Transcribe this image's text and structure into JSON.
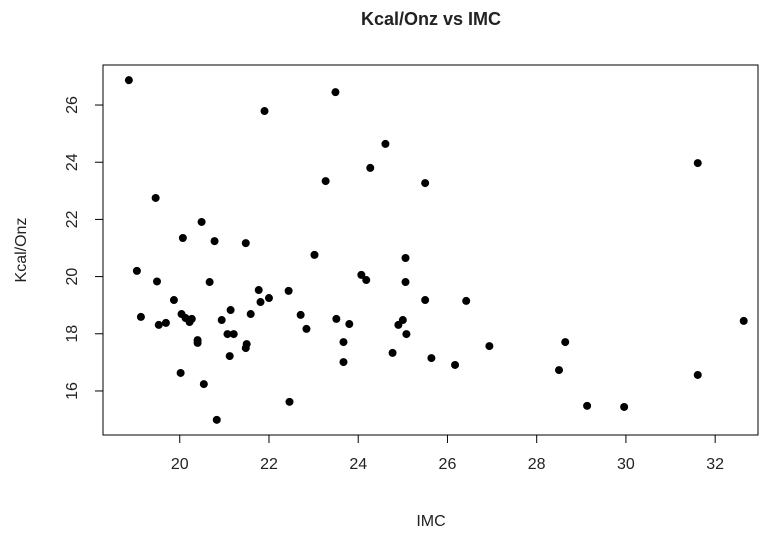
{
  "chart_data": {
    "type": "scatter",
    "title": "Kcal/Onz vs IMC",
    "x_label": "IMC",
    "y_label": "Kcal/Onz",
    "color": "#000000",
    "x": [
      18.86,
      19.04,
      19.13,
      19.46,
      19.49,
      19.53,
      19.69,
      19.87,
      20.07,
      20.04,
      20.13,
      20.22,
      20.27,
      20.02,
      20.4,
      20.4,
      20.49,
      20.54,
      20.67,
      20.78,
      20.83,
      20.94,
      21.07,
      21.14,
      21.21,
      21.12,
      21.48,
      21.48,
      21.5,
      21.59,
      21.77,
      21.81,
      21.9,
      22.0,
      22.44,
      22.46,
      22.71,
      22.84,
      23.02,
      23.27,
      23.49,
      23.51,
      23.67,
      23.67,
      23.8,
      24.07,
      24.18,
      24.27,
      24.61,
      24.77,
      24.9,
      25.0,
      25.06,
      25.06,
      25.08,
      25.5,
      25.5,
      25.64,
      26.17,
      26.42,
      26.94,
      28.5,
      28.64,
      29.13,
      29.96,
      31.61,
      31.61,
      32.64
    ],
    "values": [
      26.87,
      20.2,
      18.59,
      22.75,
      19.83,
      18.31,
      18.38,
      19.18,
      21.35,
      18.69,
      18.55,
      18.41,
      18.52,
      16.63,
      17.78,
      17.68,
      21.91,
      16.24,
      19.81,
      21.24,
      14.99,
      18.48,
      17.99,
      18.83,
      17.99,
      17.22,
      21.17,
      17.5,
      17.64,
      18.69,
      19.53,
      19.11,
      25.79,
      19.25,
      19.5,
      15.62,
      18.66,
      18.17,
      20.76,
      23.34,
      26.45,
      18.52,
      17.71,
      17.01,
      18.34,
      20.06,
      19.88,
      23.8,
      24.64,
      17.33,
      18.31,
      18.48,
      20.65,
      19.81,
      17.99,
      23.27,
      19.18,
      17.15,
      16.91,
      19.15,
      17.57,
      16.73,
      17.71,
      15.48,
      15.44,
      23.97,
      16.56,
      18.45
    ],
    "xlim": [
      18.28,
      32.96
    ],
    "ylim": [
      14.46,
      27.4
    ],
    "xticks": [
      20,
      22,
      24,
      26,
      28,
      30,
      32
    ],
    "yticks": [
      16,
      18,
      20,
      22,
      24,
      26
    ]
  }
}
